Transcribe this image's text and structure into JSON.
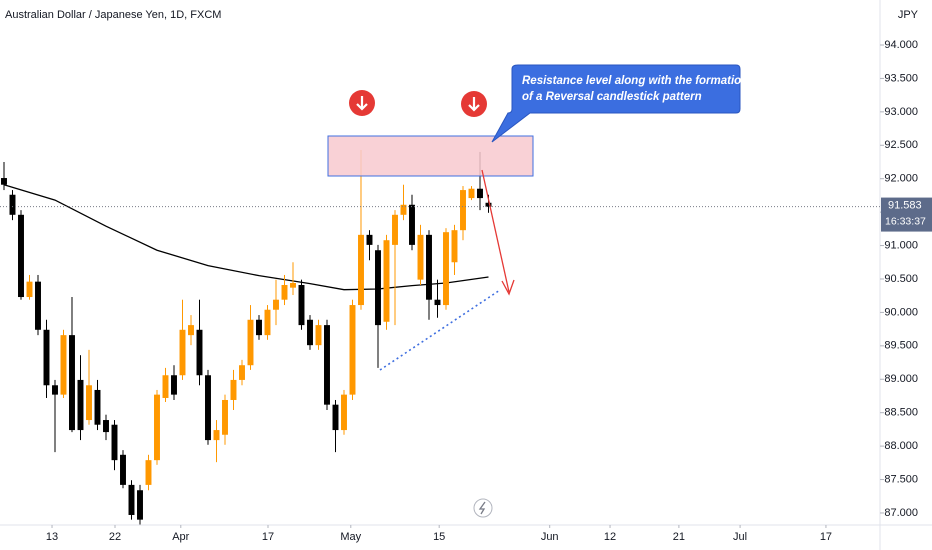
{
  "chart_data": {
    "type": "candlestick",
    "title": "Australian Dollar / Japanese Yen, 1D, FXCM",
    "currency": "JPY",
    "up_color": "#ff9800",
    "down_color": "#000000",
    "x": [
      0,
      1,
      2,
      3,
      4,
      5,
      6,
      7,
      8,
      9,
      10,
      11,
      12,
      13,
      14,
      15,
      16,
      17,
      18,
      19,
      20,
      21,
      22,
      23,
      24,
      25,
      26,
      27,
      28,
      29,
      30,
      31,
      32,
      33,
      34,
      35,
      36,
      37,
      38,
      39,
      40,
      41,
      42,
      43,
      44,
      45,
      46,
      47,
      48,
      49,
      50,
      51,
      52,
      53,
      54,
      55,
      56,
      57
    ],
    "open": [
      92.01,
      91.76,
      91.46,
      90.23,
      90.46,
      89.74,
      88.91,
      88.77,
      89.66,
      88.99,
      88.39,
      88.84,
      88.39,
      88.32,
      87.87,
      87.42,
      87.34,
      87.42,
      87.79,
      88.72,
      89.06,
      89.06,
      89.66,
      89.74,
      89.06,
      88.09,
      88.17,
      88.69,
      88.99,
      89.21,
      89.89,
      89.66,
      90.04,
      90.19,
      90.37,
      90.41,
      89.89,
      89.51,
      89.81,
      88.62,
      88.24,
      88.77,
      90.11,
      91.16,
      90.93,
      89.86,
      91.01,
      91.46,
      91.61,
      90.49,
      91.16,
      90.19,
      90.11,
      90.75,
      91.23,
      91.71,
      91.85,
      91.64
    ],
    "high": [
      92.25,
      91.83,
      91.53,
      90.56,
      90.56,
      89.89,
      88.99,
      89.74,
      90.23,
      89.36,
      89.44,
      88.99,
      88.47,
      88.39,
      87.94,
      87.49,
      87.42,
      87.87,
      88.84,
      89.17,
      89.21,
      90.19,
      89.96,
      90.19,
      89.14,
      88.39,
      88.77,
      89.14,
      89.29,
      90.11,
      89.96,
      90.11,
      90.49,
      90.56,
      90.75,
      90.49,
      89.96,
      89.89,
      89.89,
      88.69,
      88.84,
      90.19,
      92.43,
      91.23,
      91.01,
      91.16,
      91.53,
      91.91,
      91.76,
      91.31,
      91.23,
      90.49,
      91.26,
      91.31,
      91.89,
      91.89,
      92.4,
      91.76
    ],
    "low": [
      91.83,
      91.38,
      90.19,
      90.19,
      89.66,
      88.72,
      87.91,
      88.72,
      88.21,
      88.09,
      88.32,
      88.24,
      88.09,
      87.64,
      87.37,
      86.9,
      86.82,
      87.34,
      87.72,
      88.66,
      88.69,
      88.99,
      89.51,
      88.91,
      88.02,
      87.76,
      88.02,
      88.54,
      88.91,
      89.14,
      89.59,
      89.59,
      89.81,
      90.11,
      90.26,
      89.74,
      89.44,
      89.44,
      88.54,
      87.91,
      88.17,
      88.69,
      90.04,
      90.78,
      89.17,
      89.74,
      89.81,
      91.38,
      90.93,
      90.41,
      89.89,
      89.92,
      90.04,
      90.56,
      91.08,
      91.68,
      91.53,
      91.49
    ],
    "close": [
      91.91,
      91.46,
      90.23,
      90.46,
      89.74,
      88.91,
      88.77,
      89.66,
      88.24,
      88.24,
      88.91,
      88.32,
      88.21,
      87.79,
      87.42,
      86.97,
      86.9,
      87.79,
      88.77,
      89.06,
      88.77,
      89.74,
      89.81,
      89.06,
      88.09,
      88.24,
      88.69,
      88.99,
      89.21,
      89.89,
      89.66,
      90.04,
      90.19,
      90.41,
      90.44,
      89.81,
      89.51,
      89.81,
      88.62,
      88.24,
      88.77,
      90.11,
      91.16,
      91.01,
      89.81,
      91.08,
      91.46,
      91.61,
      91.01,
      91.16,
      90.19,
      90.11,
      91.2,
      91.23,
      91.83,
      91.85,
      91.71,
      91.58
    ],
    "ma": {
      "color": "#000000",
      "x": [
        0,
        6,
        12,
        18,
        24,
        30,
        36,
        40,
        44,
        48,
        52,
        57
      ],
      "values": [
        91.91,
        91.68,
        91.29,
        90.93,
        90.7,
        90.55,
        90.43,
        90.34,
        90.35,
        90.4,
        90.44,
        90.53
      ]
    },
    "xlim": [
      -0.47,
      103.06
    ],
    "xticks": [
      {
        "value": 5.65,
        "label": "13"
      },
      {
        "value": 13.06,
        "label": "22"
      },
      {
        "value": 20.8,
        "label": "Apr"
      },
      {
        "value": 31.06,
        "label": "17"
      },
      {
        "value": 40.8,
        "label": "May"
      },
      {
        "value": 51.2,
        "label": "15"
      },
      {
        "value": 64.2,
        "label": "Jun"
      },
      {
        "value": 71.3,
        "label": "12"
      },
      {
        "value": 79.4,
        "label": "21"
      },
      {
        "value": 86.6,
        "label": "Jul"
      },
      {
        "value": 96.7,
        "label": "17"
      }
    ],
    "ylim": [
      86.82,
      94.673
    ],
    "yticks": [
      {
        "value": 87,
        "label": "87.000"
      },
      {
        "value": 87.5,
        "label": "87.500"
      },
      {
        "value": 88,
        "label": "88.000"
      },
      {
        "value": 88.5,
        "label": "88.500"
      },
      {
        "value": 89,
        "label": "89.000"
      },
      {
        "value": 89.5,
        "label": "89.500"
      },
      {
        "value": 90,
        "label": "90.000"
      },
      {
        "value": 90.5,
        "label": "90.500"
      },
      {
        "value": 91,
        "label": "91.000"
      },
      {
        "value": 91.5,
        "label": "91.500"
      },
      {
        "value": 92,
        "label": "92.000"
      },
      {
        "value": 92.5,
        "label": "92.500"
      },
      {
        "value": 93,
        "label": "93.000"
      },
      {
        "value": 93.5,
        "label": "93.500"
      },
      {
        "value": 94,
        "label": "94.000"
      }
    ],
    "grid": false,
    "last_price": {
      "value": 91.583,
      "label": "91.583"
    },
    "countdown": "16:33:37",
    "callout": [
      "Resistance level along with the formation",
      "of a Reversal candlestick pattern"
    ]
  }
}
